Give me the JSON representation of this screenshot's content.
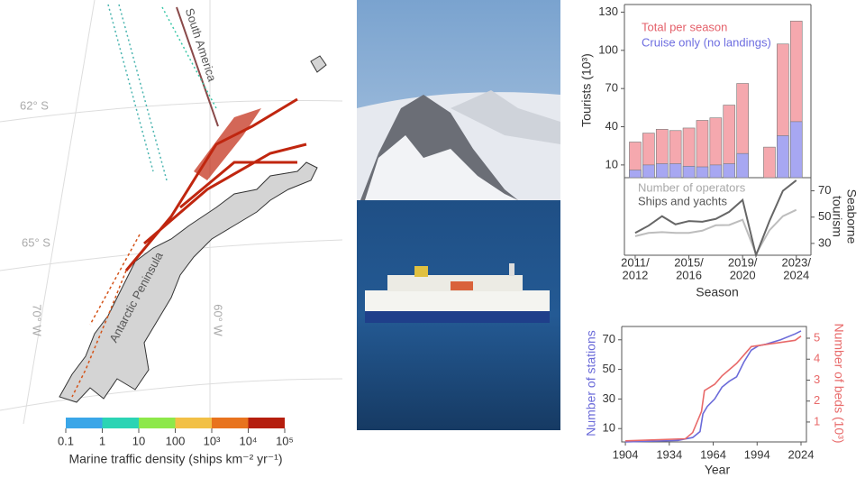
{
  "chart_data": [
    {
      "type": "bar",
      "y_label": "Tourists (10³)",
      "ylim": [
        0,
        136
      ],
      "yticks": [
        10,
        40,
        70,
        100,
        130
      ],
      "series": [
        {
          "name": "Total per season",
          "color": "#f5a8ae",
          "text_color": "#e4606a",
          "values": [
            28,
            35,
            38,
            37,
            39,
            45,
            47,
            57,
            74,
            null,
            24,
            105,
            123
          ]
        },
        {
          "name": "Cruise only (no landings)",
          "color": "#a7a7f2",
          "text_color": "#6d6de0",
          "values": [
            6,
            10,
            11,
            11,
            9,
            8.5,
            10,
            11,
            19,
            null,
            null,
            33,
            44
          ]
        }
      ]
    },
    {
      "type": "line",
      "x_label": "Season",
      "y_label": [
        "Seaborne",
        "tourism"
      ],
      "y_side": "right",
      "ylim": [
        21,
        80
      ],
      "yticks": [
        30,
        50,
        70
      ],
      "categories": [
        [
          "2011/",
          "2012"
        ],
        null,
        null,
        null,
        [
          "2015/",
          "2016"
        ],
        null,
        null,
        null,
        [
          "2019/",
          "2020"
        ],
        null,
        null,
        null,
        [
          "2023/",
          "2024"
        ]
      ],
      "series": [
        {
          "name": "Number of operators",
          "color": "#bdbdbd",
          "text_color": "#a8a8a8",
          "values": [
            35.5,
            38,
            38.6,
            38,
            38,
            39.7,
            43.8,
            44,
            48,
            22,
            40,
            50.7,
            55.5
          ]
        },
        {
          "name": "Ships and yachts",
          "color": "#666666",
          "text_color": "#555555",
          "values": [
            38,
            43.5,
            50.7,
            44.5,
            47,
            46.5,
            48.6,
            54,
            63,
            21,
            47,
            70,
            78
          ]
        }
      ]
    },
    {
      "type": "line",
      "x_label": "Year",
      "y_label": "Number of stations",
      "y2_label": "Number of beds (10³)",
      "xlim": [
        1901.5,
        2027.7
      ],
      "xticks": [
        1904,
        1934,
        1964,
        1994,
        2024
      ],
      "ylim": [
        1,
        79
      ],
      "yticks": [
        10,
        30,
        50,
        70
      ],
      "y2lim": [
        0.05,
        5.56
      ],
      "y2ticks": [
        1,
        2,
        3,
        4,
        5
      ],
      "series": [
        {
          "name": "Number of stations",
          "color": "#6b6bd9",
          "axis": "y",
          "x": [
            1904,
            1940,
            1950,
            1955,
            1957,
            1960,
            1965,
            1970,
            1975,
            1980,
            1985,
            1990,
            1995,
            2000,
            2010,
            2020,
            2024
          ],
          "values": [
            1,
            2,
            4,
            8,
            20,
            25,
            30,
            38,
            42,
            45,
            55,
            63,
            66,
            67,
            70,
            74,
            76
          ]
        },
        {
          "name": "Number of beds (10³)",
          "color": "#e86a6a",
          "axis": "y2",
          "x": [
            1904,
            1945,
            1950,
            1956,
            1958,
            1965,
            1970,
            1975,
            1980,
            1990,
            2000,
            2010,
            2020,
            2024
          ],
          "values": [
            0.1,
            0.2,
            0.5,
            1.5,
            2.5,
            2.8,
            3.2,
            3.5,
            3.8,
            4.6,
            4.7,
            4.8,
            4.9,
            5.1
          ]
        }
      ]
    }
  ],
  "map": {
    "labels": [
      "62° S",
      "65° S",
      "70° W",
      "60° W",
      "South America",
      "Antarctic Peninsula"
    ],
    "colorbar": {
      "title": "Marine traffic density (ships km⁻² yr⁻¹)",
      "colors": [
        "#3aa6e8",
        "#2bd4b4",
        "#8de84a",
        "#f2c046",
        "#e8731e",
        "#b51e0e"
      ],
      "ticks": [
        0.1,
        1,
        10,
        100,
        {
          "value": 1000,
          "label": "10³"
        },
        {
          "value": 10000,
          "label": "10⁴"
        },
        {
          "value": 100000,
          "label": "10⁵"
        }
      ]
    }
  }
}
